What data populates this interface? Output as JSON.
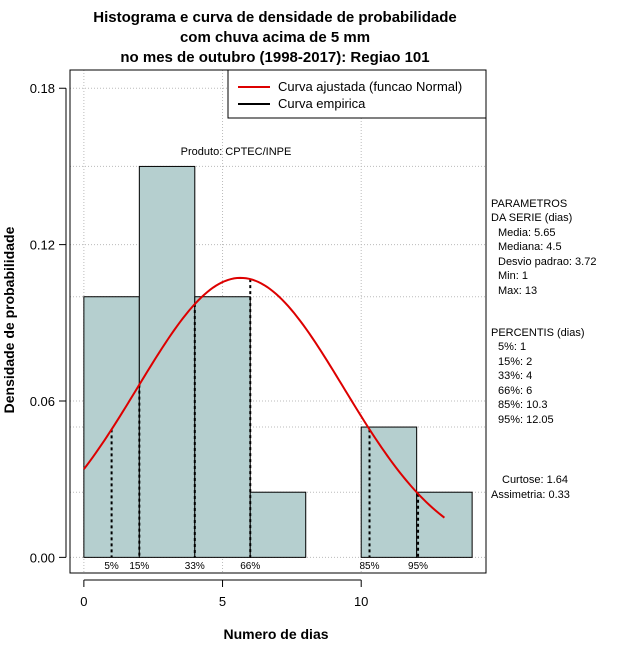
{
  "chart_data": {
    "type": "bar",
    "title_lines": [
      "Histograma e curva de densidade de probabilidade",
      "com chuva acima de 5 mm",
      "no mes de outubro (1998-2017): Regiao 101"
    ],
    "xlabel": "Numero de dias",
    "ylabel": "Densidade de probabilidade",
    "xlim": [
      -0.5,
      14.5
    ],
    "ylim": [
      -0.006,
      0.187
    ],
    "xticks": [
      0,
      5,
      10
    ],
    "yticks": [
      0.0,
      0.06,
      0.12,
      0.18
    ],
    "ytick_labels": [
      "0.00",
      "0.06",
      "0.12",
      "0.18"
    ],
    "grid": true,
    "bins": [
      {
        "x0": 0,
        "x1": 2,
        "density": 0.1
      },
      {
        "x0": 2,
        "x1": 4,
        "density": 0.15
      },
      {
        "x0": 4,
        "x1": 6,
        "density": 0.1
      },
      {
        "x0": 6,
        "x1": 8,
        "density": 0.025
      },
      {
        "x0": 8,
        "x1": 10,
        "density": 0.0
      },
      {
        "x0": 10,
        "x1": 12,
        "density": 0.05
      },
      {
        "x0": 12,
        "x1": 14,
        "density": 0.025
      }
    ],
    "normal_curve": {
      "mean": 5.65,
      "sd": 3.72,
      "x_from": 0,
      "x_to": 13,
      "color": "#dd0000"
    },
    "percentiles": [
      {
        "label": "5%",
        "x": 1
      },
      {
        "label": "15%",
        "x": 2
      },
      {
        "label": "33%",
        "x": 4
      },
      {
        "label": "66%",
        "x": 6
      },
      {
        "label": "85%",
        "x": 10.3
      },
      {
        "label": "95%",
        "x": 12.05
      }
    ],
    "legend": {
      "placement": "top-right",
      "entries": [
        {
          "label": "Curva ajustada (funcao Normal)",
          "color": "#dd0000"
        },
        {
          "label": "Curva empirica",
          "color": "#000000"
        }
      ]
    },
    "annotation": "Produto: CPTEC/INPE",
    "bar_color": "#b5cfcf"
  },
  "side_panel": {
    "params_title": [
      "PARAMETROS",
      "DA SERIE (dias)"
    ],
    "params": [
      "Media: 5.65",
      "Mediana: 4.5",
      "Desvio padrao: 3.72",
      "Min: 1",
      "Max: 13"
    ],
    "percentis_title": "PERCENTIS (dias)",
    "percentis": [
      "5%: 1",
      "15%: 2",
      "33%: 4",
      "66%: 6",
      "85%: 10.3",
      "95%: 12.05"
    ],
    "shape": [
      "Curtose: 1.64",
      "Assimetria: 0.33"
    ]
  }
}
